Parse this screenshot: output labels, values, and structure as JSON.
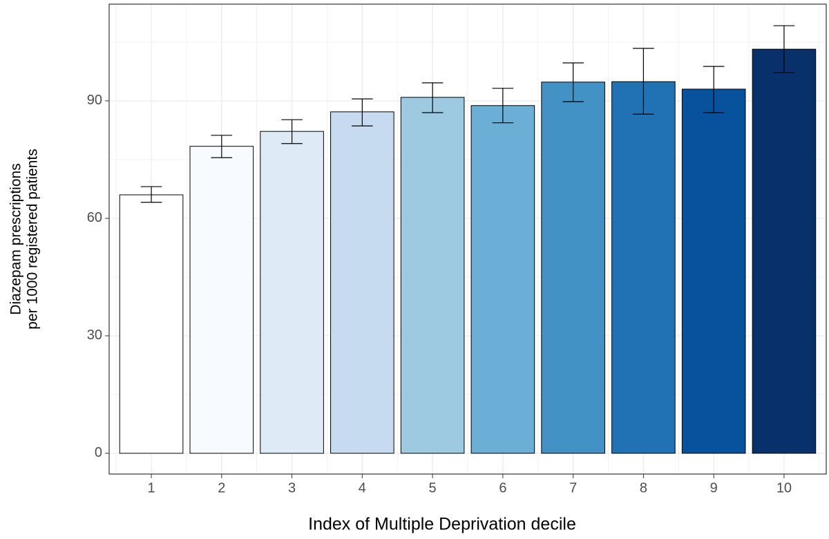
{
  "chart_data": {
    "type": "bar",
    "x_label": "Index of Multiple Deprivation decile",
    "y_label": [
      "Diazepam prescriptions",
      "per 1000 registered patients"
    ],
    "categories": [
      "1",
      "2",
      "3",
      "4",
      "5",
      "6",
      "7",
      "8",
      "9",
      "10"
    ],
    "values": [
      66.0,
      78.4,
      82.2,
      87.2,
      90.9,
      88.8,
      94.8,
      94.9,
      93.0,
      103.2
    ],
    "err_low": [
      64.1,
      75.5,
      79.1,
      83.6,
      87.0,
      84.4,
      89.8,
      86.6,
      87.0,
      97.2
    ],
    "err_high": [
      68.1,
      81.2,
      85.2,
      90.5,
      94.6,
      93.2,
      99.7,
      103.4,
      98.8,
      109.2
    ],
    "colors": [
      "#ffffff",
      "#f7fbff",
      "#deebf7",
      "#c6dbef",
      "#9ecae1",
      "#6baed6",
      "#4292c6",
      "#2171b5",
      "#08519c",
      "#08306b"
    ],
    "ylim": [
      -5.3,
      114.7
    ],
    "yticks": [
      0,
      30,
      60,
      90
    ],
    "grid": true
  }
}
